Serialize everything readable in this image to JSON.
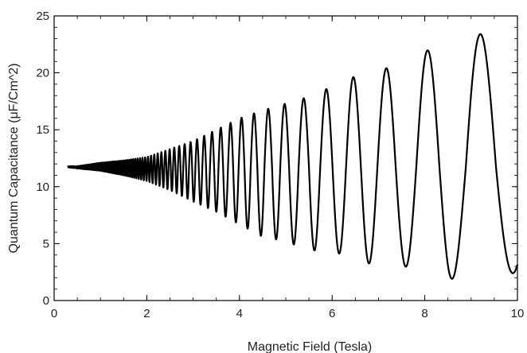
{
  "chart_data": {
    "type": "line",
    "title": "",
    "xlabel": "Magnetic Field (Tesla)",
    "ylabel": "Quantum Capacitance (μF/Cm^2)",
    "xlim": [
      0,
      10
    ],
    "ylim": [
      0,
      25
    ],
    "xticks": [
      "0",
      "2",
      "4",
      "6",
      "8",
      "10"
    ],
    "yticks": [
      "0",
      "5",
      "10",
      "15",
      "20",
      "25"
    ],
    "grid": false,
    "legend": "none",
    "line_color": "#000000",
    "series": [
      {
        "x": [
          0.3,
          0.5,
          1.0,
          1.5,
          2.0,
          2.5,
          3.0,
          3.5,
          4.0,
          4.5,
          5.0,
          5.5,
          6.0,
          6.5,
          7.0,
          7.5,
          8.0,
          8.5,
          9.0,
          9.5,
          10.0
        ],
        "y": [
          11.7,
          11.7,
          11.7,
          11.7,
          11.7,
          11.7,
          11.7,
          11.7,
          11.7,
          11.7,
          11.7,
          11.7,
          11.7,
          11.7,
          11.7,
          11.7,
          11.7,
          11.7,
          11.7,
          11.7,
          11.7
        ],
        "y_max": [
          11.8,
          11.8,
          12.1,
          12.3,
          12.6,
          13.3,
          14.0,
          15.0,
          16.0,
          16.7,
          17.3,
          17.9,
          18.8,
          19.7,
          20.2,
          20.8,
          21.9,
          22.5,
          23.4,
          23.4,
          23.4
        ],
        "y_min": [
          11.7,
          11.6,
          11.4,
          11.0,
          10.5,
          9.7,
          8.7,
          7.8,
          6.7,
          5.6,
          5.2,
          4.4,
          4.4,
          3.5,
          3.1,
          3.1,
          2.4,
          1.8,
          2.4,
          2.4,
          2.4
        ],
        "crest_fields": [
          4.62,
          4.99,
          5.39,
          5.92,
          6.5,
          7.25,
          8.07,
          9.2
        ],
        "trough_fields": [
          4.8,
          5.2,
          5.65,
          6.2,
          6.85,
          7.6,
          8.6,
          9.9
        ]
      }
    ]
  }
}
